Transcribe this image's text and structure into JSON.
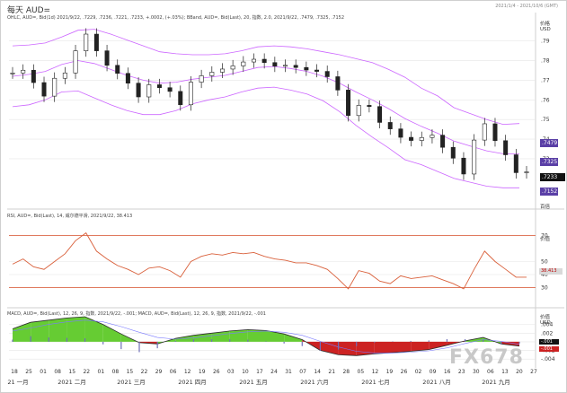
{
  "window": {
    "title": "每天 AUD=",
    "date_range": "2021/1/4 - 2021/10/6 (GMT)",
    "watermark": "FX678"
  },
  "headers": {
    "main": "OHLC, AUD=, Bid(1d) 2021/9/22, .7229, .7236, .7221, .7233, +.0002, (+.03%); BBand, AUD=, Bid(Last), 20, 指数, 2.0, 2021/9/22, .7479, .7325, .7152",
    "rsi": "RSI, AUD=, Bid(Last), 14, 威尔德平滑, 2021/9/22, 38.413",
    "macd": "MACD, AUD=, Bid(Last), 12, 26, 9, 指数, 2021/9/22, -.001; MACD, AUD=, Bid(Last), 12, 26, 9, 指数, 2021/9/22, -.001"
  },
  "axes": {
    "price_unit": "价格\nUSD",
    "rsi_unit": "价值",
    "macd_unit": "价值\nUSD",
    "main_unit_bottom": "百倍"
  },
  "chart_data": [
    {
      "type": "candlestick",
      "title": "",
      "y_ticks": [
        ".73",
        ".74",
        ".75",
        ".76",
        ".77",
        ".78",
        ".79"
      ],
      "ylim": [
        0.708,
        0.799
      ],
      "x_ticks": [
        "18",
        "25",
        "01",
        "08",
        "15",
        "22",
        "01",
        "08",
        "15",
        "22",
        "29",
        "06",
        "12",
        "19",
        "26",
        "03",
        "10",
        "17",
        "24",
        "31",
        "07",
        "14",
        "21",
        "28",
        "05",
        "12",
        "19",
        "26",
        "02",
        "09",
        "16",
        "23",
        "30",
        "06",
        "13",
        "20",
        "27"
      ],
      "months": [
        "21 一月",
        "2021 二月",
        "2021 三月",
        "2021 四月",
        "2021 五月",
        "2021 六月",
        "2021 七月",
        "2021 八月",
        "2021 九月"
      ],
      "close_values": [
        0.7737,
        0.7751,
        0.7688,
        0.7619,
        0.771,
        0.7737,
        0.785,
        0.7935,
        0.785,
        0.7776,
        0.7735,
        0.7685,
        0.7615,
        0.7677,
        0.7662,
        0.7643,
        0.7575,
        0.769,
        0.7723,
        0.7741,
        0.7757,
        0.7773,
        0.7793,
        0.7807,
        0.779,
        0.7772,
        0.7776,
        0.7765,
        0.7752,
        0.7745,
        0.7718,
        0.765,
        0.752,
        0.7572,
        0.7566,
        0.7485,
        0.7452,
        0.7409,
        0.7393,
        0.7408,
        0.742,
        0.7358,
        0.7303,
        0.7222,
        0.7395,
        0.7478,
        0.7392,
        0.732,
        0.7229,
        0.7233
      ],
      "bollinger": {
        "upper": [
          0.7875,
          0.788,
          0.789,
          0.792,
          0.7955,
          0.796,
          0.7935,
          0.7905,
          0.7875,
          0.7845,
          0.7835,
          0.783,
          0.783,
          0.7835,
          0.785,
          0.787,
          0.7875,
          0.787,
          0.786,
          0.7845,
          0.783,
          0.781,
          0.779,
          0.7755,
          0.7715,
          0.766,
          0.762,
          0.756,
          0.753,
          0.75,
          0.7475,
          0.7479
        ],
        "middle": [
          0.772,
          0.773,
          0.7745,
          0.778,
          0.78,
          0.7785,
          0.7755,
          0.7725,
          0.77,
          0.7685,
          0.769,
          0.7705,
          0.7715,
          0.7725,
          0.7745,
          0.7765,
          0.777,
          0.776,
          0.7745,
          0.772,
          0.7685,
          0.764,
          0.76,
          0.7555,
          0.7505,
          0.7465,
          0.743,
          0.739,
          0.7365,
          0.734,
          0.7325,
          0.7325
        ],
        "lower": [
          0.7565,
          0.7575,
          0.76,
          0.764,
          0.7645,
          0.761,
          0.7575,
          0.7545,
          0.7525,
          0.7525,
          0.7545,
          0.758,
          0.76,
          0.7615,
          0.764,
          0.766,
          0.7665,
          0.765,
          0.763,
          0.7595,
          0.754,
          0.747,
          0.741,
          0.7355,
          0.7295,
          0.727,
          0.7235,
          0.72,
          0.718,
          0.716,
          0.7152,
          0.7152
        ]
      },
      "last_close_label": ".7233",
      "band_labels": [
        ".7479",
        ".7325",
        ".7152"
      ]
    },
    {
      "type": "line",
      "title": "RSI",
      "y_ticks": [
        "70",
        "50",
        "40",
        "30"
      ],
      "ylim": [
        20,
        80
      ],
      "levels": [
        70,
        30
      ],
      "values": [
        48,
        52,
        46,
        44,
        50,
        56,
        66,
        72,
        58,
        52,
        47,
        44,
        40,
        45,
        46,
        43,
        38,
        50,
        54,
        56,
        55,
        57,
        56,
        57,
        54,
        52,
        51,
        49,
        49,
        47,
        44,
        37,
        29,
        43,
        41,
        35,
        33,
        39,
        37,
        38,
        39,
        36,
        33,
        29,
        44,
        58,
        50,
        44,
        38,
        38
      ],
      "last_label": "38.413"
    },
    {
      "type": "bar",
      "title": "MACD",
      "y_ticks": [
        ".004",
        ".002",
        ".000",
        "-.002",
        "-.004"
      ],
      "ylim": [
        -0.005,
        0.006
      ],
      "macd_line": [
        0.003,
        0.0045,
        0.005,
        0.0055,
        0.0058,
        0.004,
        0.0018,
        -0.0002,
        -0.0005,
        0.0008,
        0.0015,
        0.002,
        0.0025,
        0.0028,
        0.0026,
        0.0018,
        0.0005,
        -0.002,
        -0.003,
        -0.0032,
        -0.0028,
        -0.0025,
        -0.0022,
        -0.0018,
        -0.0008,
        0.0002,
        0.001,
        -0.0005,
        -0.001
      ],
      "signal_line": [
        0.0025,
        0.0032,
        0.004,
        0.0046,
        0.005,
        0.0046,
        0.0035,
        0.0022,
        0.001,
        0.0006,
        0.0009,
        0.0014,
        0.0019,
        0.0023,
        0.0025,
        0.0022,
        0.0015,
        0.0001,
        -0.0012,
        -0.0022,
        -0.0026,
        -0.0026,
        -0.0024,
        -0.0021,
        -0.0014,
        -0.0004,
        0.0005,
        0.0001,
        -0.0006
      ],
      "last_labels": [
        "-.001",
        "-.001"
      ]
    }
  ],
  "colors": {
    "bollinger": "#cc66ff",
    "rsi_line": "#d9603b",
    "rsi_levels": "#e07a5f",
    "macd_pos": "#66cc33",
    "macd_neg": "#cc2222",
    "macd_line": "#2d2d2d",
    "grid": "#e6e6e6"
  }
}
